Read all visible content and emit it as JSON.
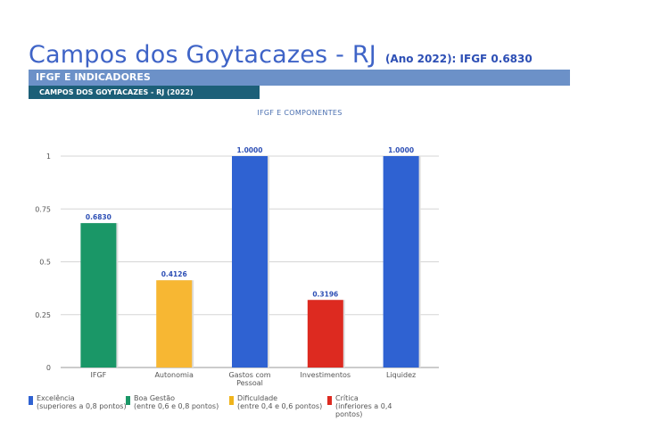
{
  "header": {
    "title": "Campos dos Goytacazes - RJ",
    "subtitle": "(Ano 2022): IFGF  0.6830",
    "band": "IFGF E INDICADORES",
    "subband": "CAMPOS DOS GOYTACAZES - RJ (2022)"
  },
  "chart_data": {
    "type": "bar",
    "title": "IFGF E COMPONENTES",
    "categories": [
      "IFGF",
      "Autonomia",
      "Gastos com Pessoal",
      "Investimentos",
      "Liquidez"
    ],
    "values": [
      0.683,
      0.4126,
      1.0,
      0.3196,
      1.0
    ],
    "value_labels": [
      "0.6830",
      "0.4126",
      "1.0000",
      "0.3196",
      "1.0000"
    ],
    "bar_colors": [
      "#1a9767",
      "#f7b733",
      "#2f62d2",
      "#dd2a20",
      "#2f62d2"
    ],
    "yticks": [
      "0",
      "0.25",
      "0.5",
      "0.75",
      "1"
    ],
    "ylim": [
      0,
      1
    ],
    "grid": true,
    "legend_position": "bottom-left"
  },
  "legend": [
    {
      "line1": "Excelência",
      "line2": "(superiores a 0,8 pontos)",
      "color": "#2f62d2"
    },
    {
      "line1": "Boa Gestão",
      "line2": "(entre 0,6 e 0,8 pontos)",
      "color": "#1a9767"
    },
    {
      "line1": "Dificuldade",
      "line2": "(entre 0,4 e 0,6 pontos)",
      "color": "#f0b41c"
    },
    {
      "line1": "Crítica",
      "line2": "(inferiores a 0,4",
      "line3": "pontos)",
      "color": "#dd2a20"
    }
  ]
}
